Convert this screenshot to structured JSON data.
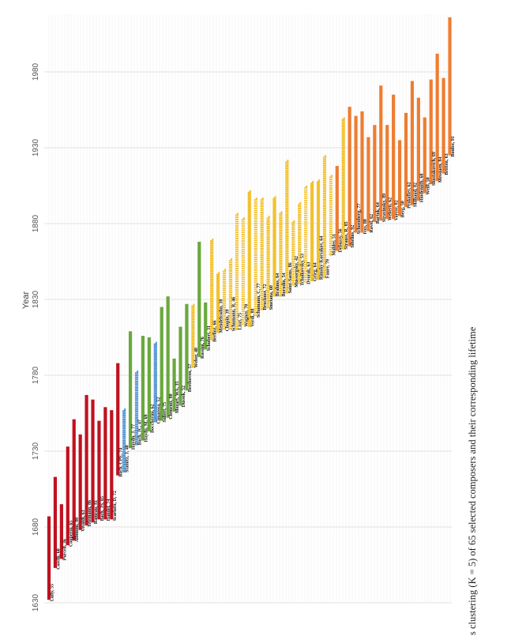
{
  "chart_data": {
    "type": "range-bar",
    "orientation": "vertical-time-axis",
    "ylabel": "Year",
    "xlabel": "",
    "y_ticks": [
      1630,
      1680,
      1730,
      1780,
      1830,
      1880,
      1930,
      1980
    ],
    "ylim": [
      1630,
      2005
    ],
    "grid": true,
    "caption": "s clustering (K = 5) of 65 selected composers and their corresponding lifetime",
    "cluster_colors": {
      "1": "#c0111f",
      "2": "#5a9ad6",
      "3": "#6aa83c",
      "4": "#f2c12e",
      "5": "#ee7d31"
    },
    "composers": [
      {
        "label": "Lully, 55",
        "start": 1632,
        "end": 1687,
        "cluster": 1
      },
      {
        "label": "Corelli, 60",
        "start": 1653,
        "end": 1713,
        "cluster": 1
      },
      {
        "label": "Purcell, 36",
        "start": 1659,
        "end": 1695,
        "cluster": 1
      },
      {
        "label": "Couperin, 65",
        "start": 1668,
        "end": 1733,
        "cluster": 1
      },
      {
        "label": "Albinoni, 80",
        "start": 1671,
        "end": 1751,
        "cluster": 1
      },
      {
        "label": "Vivaldi, 63",
        "start": 1678,
        "end": 1741,
        "cluster": 1
      },
      {
        "label": "Telemann, 86",
        "start": 1681,
        "end": 1767,
        "cluster": 1
      },
      {
        "label": "Rameau, 81",
        "start": 1683,
        "end": 1764,
        "cluster": 1
      },
      {
        "label": "Bach, JS, 65",
        "start": 1685,
        "end": 1750,
        "cluster": 1
      },
      {
        "label": "Handel, 74",
        "start": 1685,
        "end": 1759,
        "cluster": 1
      },
      {
        "label": "Scarlatti, D, 72",
        "start": 1685,
        "end": 1757,
        "cluster": 1
      },
      {
        "label": "Bach, CPE, 74",
        "start": 1714,
        "end": 1788,
        "cluster": 1
      },
      {
        "label": "Stamitz, J, 40",
        "start": 1717,
        "end": 1757,
        "cluster": 2
      },
      {
        "label": "Haydn, J, 77",
        "start": 1732,
        "end": 1809,
        "cluster": 3
      },
      {
        "label": "Bach, JC, 47",
        "start": 1735,
        "end": 1782,
        "cluster": 2
      },
      {
        "label": "Haydn, M, 69",
        "start": 1737,
        "end": 1806,
        "cluster": 3
      },
      {
        "label": "Boccherini, 62",
        "start": 1743,
        "end": 1805,
        "cluster": 3
      },
      {
        "label": "Cimarosa, 52",
        "start": 1749,
        "end": 1801,
        "cluster": 2
      },
      {
        "label": "Salieri, 75",
        "start": 1750,
        "end": 1825,
        "cluster": 3
      },
      {
        "label": "Clementi, 80",
        "start": 1752,
        "end": 1832,
        "cluster": 3
      },
      {
        "label": "Mozart, WA, 35",
        "start": 1756,
        "end": 1791,
        "cluster": 3
      },
      {
        "label": "Dussek, 52",
        "start": 1760,
        "end": 1812,
        "cluster": 3
      },
      {
        "label": "Beethoven, 57",
        "start": 1770,
        "end": 1827,
        "cluster": 3
      },
      {
        "label": "Weber, 40",
        "start": 1786,
        "end": 1826,
        "cluster": 4
      },
      {
        "label": "Rossini, 76",
        "start": 1792,
        "end": 1868,
        "cluster": 3
      },
      {
        "label": "Schubert, 31",
        "start": 1797,
        "end": 1828,
        "cluster": 3
      },
      {
        "label": "Berlioz, 66",
        "start": 1803,
        "end": 1869,
        "cluster": 4
      },
      {
        "label": "Mendelssohn, 38",
        "start": 1809,
        "end": 1847,
        "cluster": 4
      },
      {
        "label": "Chopin, 39",
        "start": 1810,
        "end": 1849,
        "cluster": 4
      },
      {
        "label": "Schumann, R, 46",
        "start": 1810,
        "end": 1856,
        "cluster": 4
      },
      {
        "label": "Liszt, 75",
        "start": 1811,
        "end": 1886,
        "cluster": 4
      },
      {
        "label": "Wagner, 70",
        "start": 1813,
        "end": 1883,
        "cluster": 4
      },
      {
        "label": "Verdi, 88",
        "start": 1813,
        "end": 1901,
        "cluster": 4
      },
      {
        "label": "Schumann, C, 77",
        "start": 1819,
        "end": 1896,
        "cluster": 4
      },
      {
        "label": "Bruckner, 72",
        "start": 1824,
        "end": 1896,
        "cluster": 4
      },
      {
        "label": "Smetana, 60",
        "start": 1824,
        "end": 1884,
        "cluster": 4
      },
      {
        "label": "Brahms, 64",
        "start": 1833,
        "end": 1897,
        "cluster": 4
      },
      {
        "label": "Borodin, 54",
        "start": 1833,
        "end": 1887,
        "cluster": 4
      },
      {
        "label": "Saint-Saens, 86",
        "start": 1835,
        "end": 1921,
        "cluster": 4
      },
      {
        "label": "Mussorgsky, 42",
        "start": 1839,
        "end": 1881,
        "cluster": 4
      },
      {
        "label": "Tchaikovsky, 53",
        "start": 1840,
        "end": 1893,
        "cluster": 4
      },
      {
        "label": "Dvorak, 63",
        "start": 1841,
        "end": 1904,
        "cluster": 4
      },
      {
        "label": "Grieg, 64",
        "start": 1843,
        "end": 1907,
        "cluster": 4
      },
      {
        "label": "Rimsky-Korsakov, 64",
        "start": 1844,
        "end": 1908,
        "cluster": 4
      },
      {
        "label": "Faure, 79",
        "start": 1845,
        "end": 1924,
        "cluster": 4
      },
      {
        "label": "Mahler, 51",
        "start": 1860,
        "end": 1911,
        "cluster": 4
      },
      {
        "label": "Debussy, 56",
        "start": 1862,
        "end": 1918,
        "cluster": 5
      },
      {
        "label": "Strauss, R, 85",
        "start": 1864,
        "end": 1949,
        "cluster": 4
      },
      {
        "label": "Sibelius, 92",
        "start": 1865,
        "end": 1957,
        "cluster": 5
      },
      {
        "label": "Schoenberg, 77",
        "start": 1874,
        "end": 1951,
        "cluster": 5
      },
      {
        "label": "Ives, 80",
        "start": 1874,
        "end": 1954,
        "cluster": 5
      },
      {
        "label": "Ravel, 62",
        "start": 1875,
        "end": 1937,
        "cluster": 5
      },
      {
        "label": "Bartok, 64",
        "start": 1881,
        "end": 1945,
        "cluster": 5
      },
      {
        "label": "Stravinsky, 89",
        "start": 1882,
        "end": 1971,
        "cluster": 5
      },
      {
        "label": "Webern, 62",
        "start": 1883,
        "end": 1945,
        "cluster": 5
      },
      {
        "label": "Varese, 82",
        "start": 1883,
        "end": 1965,
        "cluster": 5
      },
      {
        "label": "Berg, 50",
        "start": 1885,
        "end": 1935,
        "cluster": 5
      },
      {
        "label": "Prokofiev, 62",
        "start": 1891,
        "end": 1953,
        "cluster": 5
      },
      {
        "label": "Milhaud, 82",
        "start": 1892,
        "end": 1974,
        "cluster": 5
      },
      {
        "label": "Hindemith, 68",
        "start": 1895,
        "end": 1963,
        "cluster": 5
      },
      {
        "label": "Weill, 50",
        "start": 1900,
        "end": 1950,
        "cluster": 5
      },
      {
        "label": "Shostakovich, 69",
        "start": 1906,
        "end": 1975,
        "cluster": 5
      },
      {
        "label": "Messiaen, 84",
        "start": 1908,
        "end": 1992,
        "cluster": 5
      },
      {
        "label": "Britten, 63",
        "start": 1913,
        "end": 1976,
        "cluster": 5
      },
      {
        "label": "Boulez, 91",
        "start": 1925,
        "end": 2016,
        "cluster": 5
      }
    ]
  }
}
